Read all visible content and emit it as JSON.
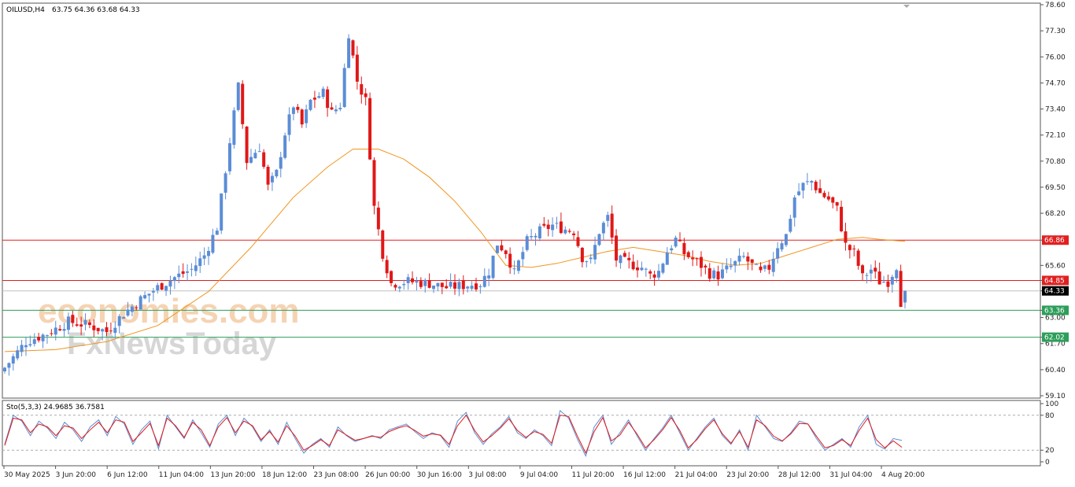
{
  "header": {
    "symbol": "OILUSD,H4",
    "ohlc": "63.75 64.36 63.68 64.33"
  },
  "watermark": {
    "line1": "economies.com",
    "line2": "FxNewsToday"
  },
  "colors": {
    "bull": "#5b8dd6",
    "bear": "#e01818",
    "ma": "#f0961e",
    "resistance": "#e02020",
    "support": "#2e9e5a",
    "stoch_main": "#5b8dd6",
    "stoch_signal": "#e01818",
    "grid": "#bbbbbb"
  },
  "chart_data": [
    {
      "type": "candlestick",
      "y_axis_ticks": [
        "78.60",
        "77.30",
        "76.00",
        "74.70",
        "73.40",
        "72.10",
        "70.80",
        "69.50",
        "68.20",
        "66.86",
        "65.60",
        "64.85",
        "64.33",
        "63.36",
        "63.00",
        "62.02",
        "61.70",
        "60.40",
        "59.10"
      ],
      "x_axis_ticks": [
        "30 May 2025",
        "3 Jun 20:00",
        "6 Jun 12:00",
        "11 Jun 04:00",
        "13 Jun 20:00",
        "18 Jun 12:00",
        "23 Jun 08:00",
        "26 Jun 00:00",
        "30 Jun 16:00",
        "3 Jul 08:00",
        "9 Jul 04:00",
        "11 Jul 20:00",
        "16 Jul 12:00",
        "21 Jul 04:00",
        "23 Jul 20:00",
        "28 Jul 12:00",
        "31 Jul 04:00",
        "4 Aug 20:00"
      ],
      "ylim": [
        59.1,
        78.6
      ],
      "levels": [
        {
          "value": 66.86,
          "label": "66.86",
          "kind": "resistance"
        },
        {
          "value": 64.85,
          "label": "64.85",
          "kind": "resistance"
        },
        {
          "value": 63.36,
          "label": "63.36",
          "kind": "support"
        },
        {
          "value": 62.02,
          "label": "62.02",
          "kind": "support"
        }
      ],
      "current_price": {
        "value": 64.33,
        "label": "64.33"
      },
      "close_path": [
        [
          0,
          60.5
        ],
        [
          5,
          61.8
        ],
        [
          10,
          62.2
        ],
        [
          15,
          62.8
        ],
        [
          20,
          62.6
        ],
        [
          24,
          62.3
        ],
        [
          28,
          63.2
        ],
        [
          32,
          63.9
        ],
        [
          36,
          64.5
        ],
        [
          40,
          65.0
        ],
        [
          44,
          65.4
        ],
        [
          47,
          66.1
        ],
        [
          50,
          67.5
        ],
        [
          53,
          71.8
        ],
        [
          55,
          74.5
        ],
        [
          57,
          70.8
        ],
        [
          60,
          71.5
        ],
        [
          62,
          69.5
        ],
        [
          64,
          70.2
        ],
        [
          66,
          72.2
        ],
        [
          68,
          73.6
        ],
        [
          70,
          72.6
        ],
        [
          72,
          73.8
        ],
        [
          75,
          74.2
        ],
        [
          77,
          73.2
        ],
        [
          79,
          73.6
        ],
        [
          81,
          77.2
        ],
        [
          83,
          74.8
        ],
        [
          85,
          73.8
        ],
        [
          87,
          68.5
        ],
        [
          89,
          66.2
        ],
        [
          91,
          64.7
        ],
        [
          95,
          64.8
        ],
        [
          100,
          64.7
        ],
        [
          104,
          64.5
        ],
        [
          108,
          64.6
        ],
        [
          112,
          64.7
        ],
        [
          114,
          65.3
        ],
        [
          116,
          66.7
        ],
        [
          118,
          66.3
        ],
        [
          120,
          65.2
        ],
        [
          123,
          66.8
        ],
        [
          126,
          67.3
        ],
        [
          129,
          67.6
        ],
        [
          132,
          67.4
        ],
        [
          134,
          67.3
        ],
        [
          136,
          66.0
        ],
        [
          138,
          65.8
        ],
        [
          140,
          67.3
        ],
        [
          142,
          68.0
        ],
        [
          144,
          65.9
        ],
        [
          147,
          65.7
        ],
        [
          150,
          65.5
        ],
        [
          152,
          65.1
        ],
        [
          154,
          65.3
        ],
        [
          156,
          66.3
        ],
        [
          158,
          66.9
        ],
        [
          160,
          66.2
        ],
        [
          162,
          65.9
        ],
        [
          164,
          65.6
        ],
        [
          166,
          65.2
        ],
        [
          168,
          65.1
        ],
        [
          170,
          65.4
        ],
        [
          172,
          65.7
        ],
        [
          174,
          66.0
        ],
        [
          176,
          65.6
        ],
        [
          178,
          65.2
        ],
        [
          180,
          65.5
        ],
        [
          182,
          66.6
        ],
        [
          184,
          67.1
        ],
        [
          186,
          69.0
        ],
        [
          188,
          69.6
        ],
        [
          190,
          69.8
        ],
        [
          192,
          69.2
        ],
        [
          194,
          68.9
        ],
        [
          196,
          68.4
        ],
        [
          198,
          66.6
        ],
        [
          200,
          66.2
        ],
        [
          202,
          65.0
        ],
        [
          204,
          65.4
        ],
        [
          206,
          64.8
        ],
        [
          208,
          64.8
        ],
        [
          210,
          65.6
        ],
        [
          211,
          63.8
        ],
        [
          212,
          64.33
        ]
      ],
      "ma_path": [
        [
          0,
          61.3
        ],
        [
          12,
          61.4
        ],
        [
          24,
          61.8
        ],
        [
          36,
          62.6
        ],
        [
          48,
          64.3
        ],
        [
          58,
          66.5
        ],
        [
          68,
          69.0
        ],
        [
          76,
          70.5
        ],
        [
          82,
          71.4
        ],
        [
          88,
          71.4
        ],
        [
          94,
          70.9
        ],
        [
          100,
          70.0
        ],
        [
          106,
          68.8
        ],
        [
          112,
          67.3
        ],
        [
          118,
          65.6
        ],
        [
          124,
          65.5
        ],
        [
          130,
          65.7
        ],
        [
          136,
          66.0
        ],
        [
          142,
          66.3
        ],
        [
          148,
          66.5
        ],
        [
          154,
          66.3
        ],
        [
          160,
          66.1
        ],
        [
          166,
          65.8
        ],
        [
          172,
          65.6
        ],
        [
          178,
          65.7
        ],
        [
          184,
          66.1
        ],
        [
          190,
          66.5
        ],
        [
          196,
          66.9
        ],
        [
          202,
          67.0
        ],
        [
          206,
          66.9
        ],
        [
          212,
          66.8
        ]
      ]
    },
    {
      "type": "line",
      "title": "Sto(5,3,3) 24.9685 36.7581",
      "y_axis_ticks": [
        "100",
        "80",
        "20",
        "0"
      ],
      "ylim": [
        0,
        100
      ],
      "levels": [
        80,
        20
      ],
      "series": [
        {
          "name": "main",
          "values": [
            30,
            80,
            70,
            45,
            70,
            58,
            40,
            68,
            55,
            35,
            60,
            72,
            45,
            78,
            65,
            30,
            55,
            70,
            22,
            80,
            60,
            40,
            72,
            50,
            25,
            65,
            80,
            45,
            75,
            60,
            35,
            55,
            30,
            68,
            40,
            15,
            30,
            40,
            25,
            60,
            45,
            35,
            40,
            45,
            40,
            55,
            60,
            65,
            52,
            40,
            50,
            45,
            25,
            70,
            85,
            50,
            30,
            48,
            60,
            78,
            50,
            40,
            55,
            45,
            28,
            88,
            75,
            40,
            10,
            60,
            80,
            30,
            50,
            72,
            45,
            20,
            40,
            58,
            80,
            50,
            20,
            40,
            60,
            75,
            45,
            30,
            55,
            20,
            80,
            60,
            40,
            35,
            50,
            70,
            65,
            40,
            20,
            30,
            40,
            25,
            60,
            80,
            30,
            22,
            40,
            36.76
          ]
        },
        {
          "name": "signal",
          "values": [
            28,
            75,
            72,
            50,
            65,
            60,
            45,
            62,
            58,
            40,
            55,
            68,
            50,
            72,
            68,
            35,
            50,
            66,
            28,
            75,
            62,
            42,
            68,
            55,
            28,
            60,
            76,
            50,
            70,
            62,
            38,
            52,
            34,
            62,
            44,
            20,
            28,
            38,
            28,
            55,
            46,
            37,
            40,
            44,
            42,
            52,
            58,
            62,
            54,
            44,
            48,
            46,
            30,
            62,
            80,
            54,
            34,
            45,
            58,
            74,
            54,
            42,
            52,
            47,
            32,
            80,
            78,
            45,
            15,
            52,
            76,
            36,
            46,
            68,
            48,
            24,
            38,
            55,
            76,
            54,
            24,
            38,
            57,
            72,
            48,
            32,
            52,
            25,
            72,
            62,
            44,
            36,
            48,
            66,
            65,
            44,
            24,
            28,
            38,
            28,
            54,
            75,
            38,
            24,
            36,
            24.97
          ]
        }
      ]
    }
  ]
}
